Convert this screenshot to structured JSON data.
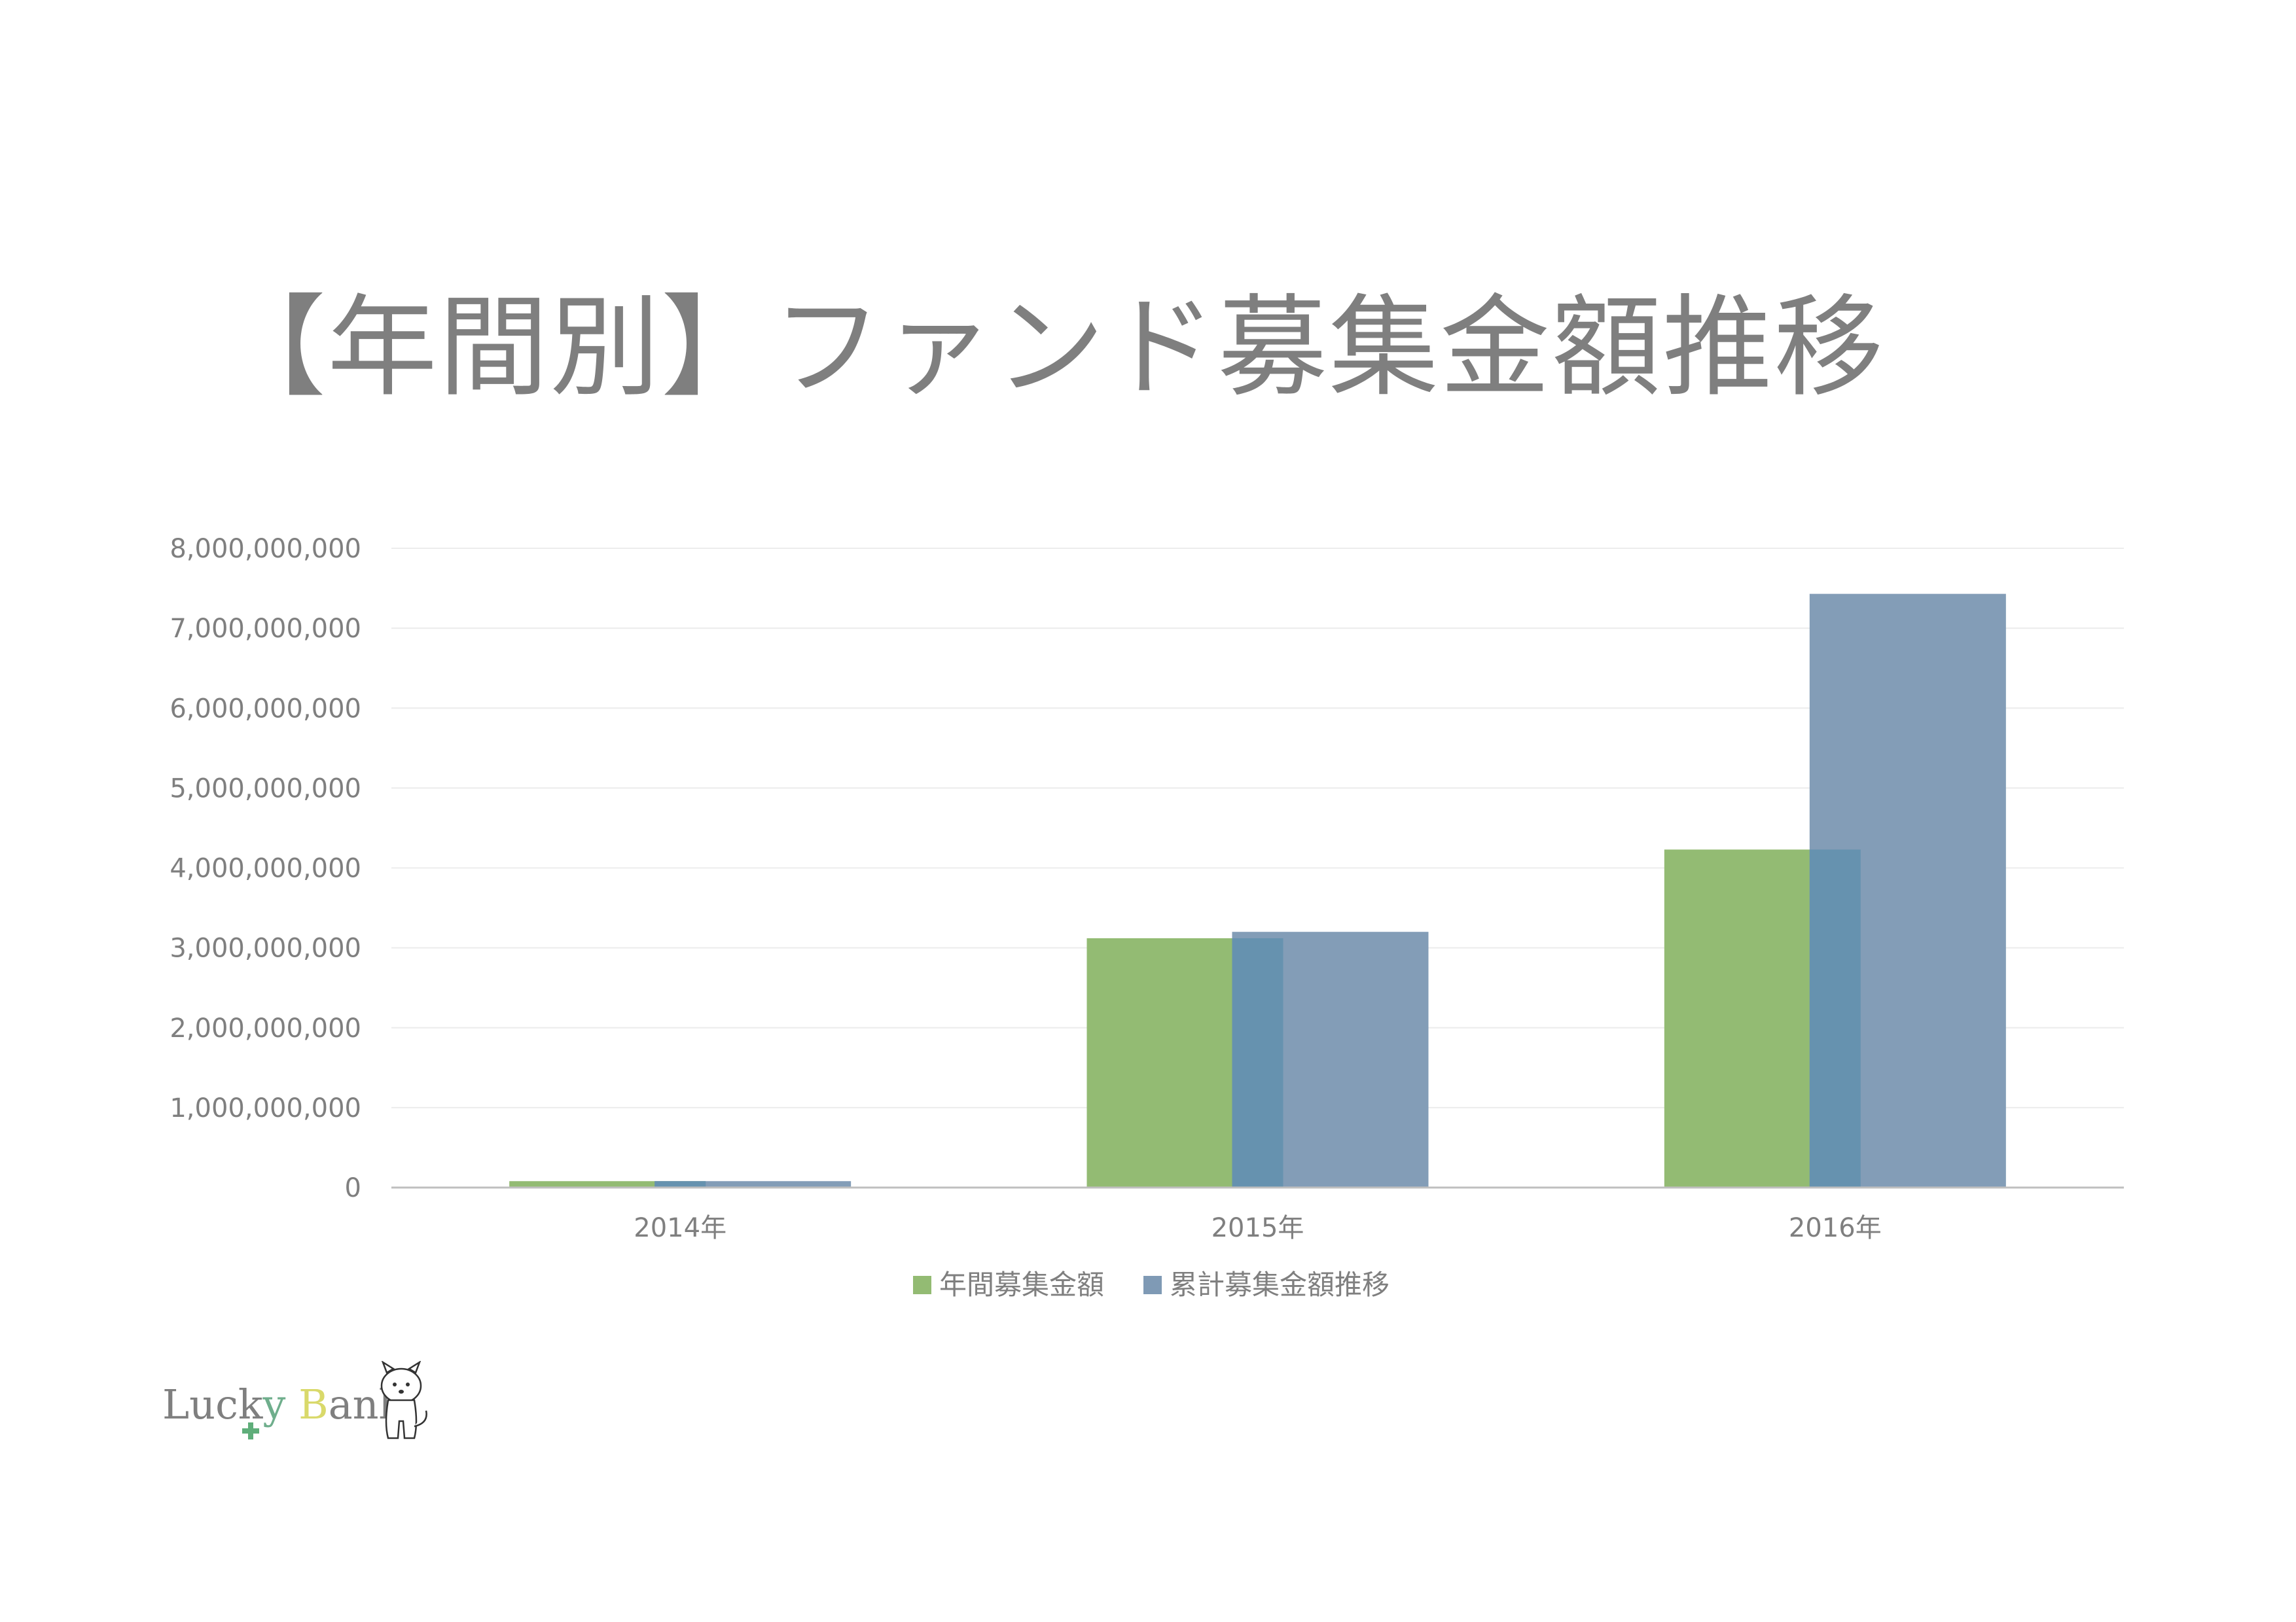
{
  "title": "【年間別】ファンド募集金額推移",
  "colors": {
    "annual": "#93bb73",
    "cumulative": "#7f9ab5",
    "overlap": "#5e8fae",
    "grid": "#ececec",
    "axis": "#bfbfbf",
    "text": "#7f7f7f"
  },
  "chart_data": {
    "type": "bar",
    "categories": [
      "2014年",
      "2015年",
      "2016年"
    ],
    "series": [
      {
        "name": "年間募集金額",
        "values": [
          80000000,
          3120000000,
          4230000000
        ]
      },
      {
        "name": "累計募集金額推移",
        "values": [
          80000000,
          3200000000,
          7430000000
        ]
      }
    ],
    "y_ticks": [
      "0",
      "1,000,000,000",
      "2,000,000,000",
      "3,000,000,000",
      "4,000,000,000",
      "5,000,000,000",
      "6,000,000,000",
      "7,000,000,000",
      "8,000,000,000"
    ],
    "ylim": [
      0,
      8000000000
    ],
    "grid": true,
    "legend_position": "bottom",
    "bar_overlap": true
  },
  "logo": {
    "text_part1": "Luck",
    "text_y": "y",
    "text_b": "B",
    "text_part2": "ank"
  }
}
